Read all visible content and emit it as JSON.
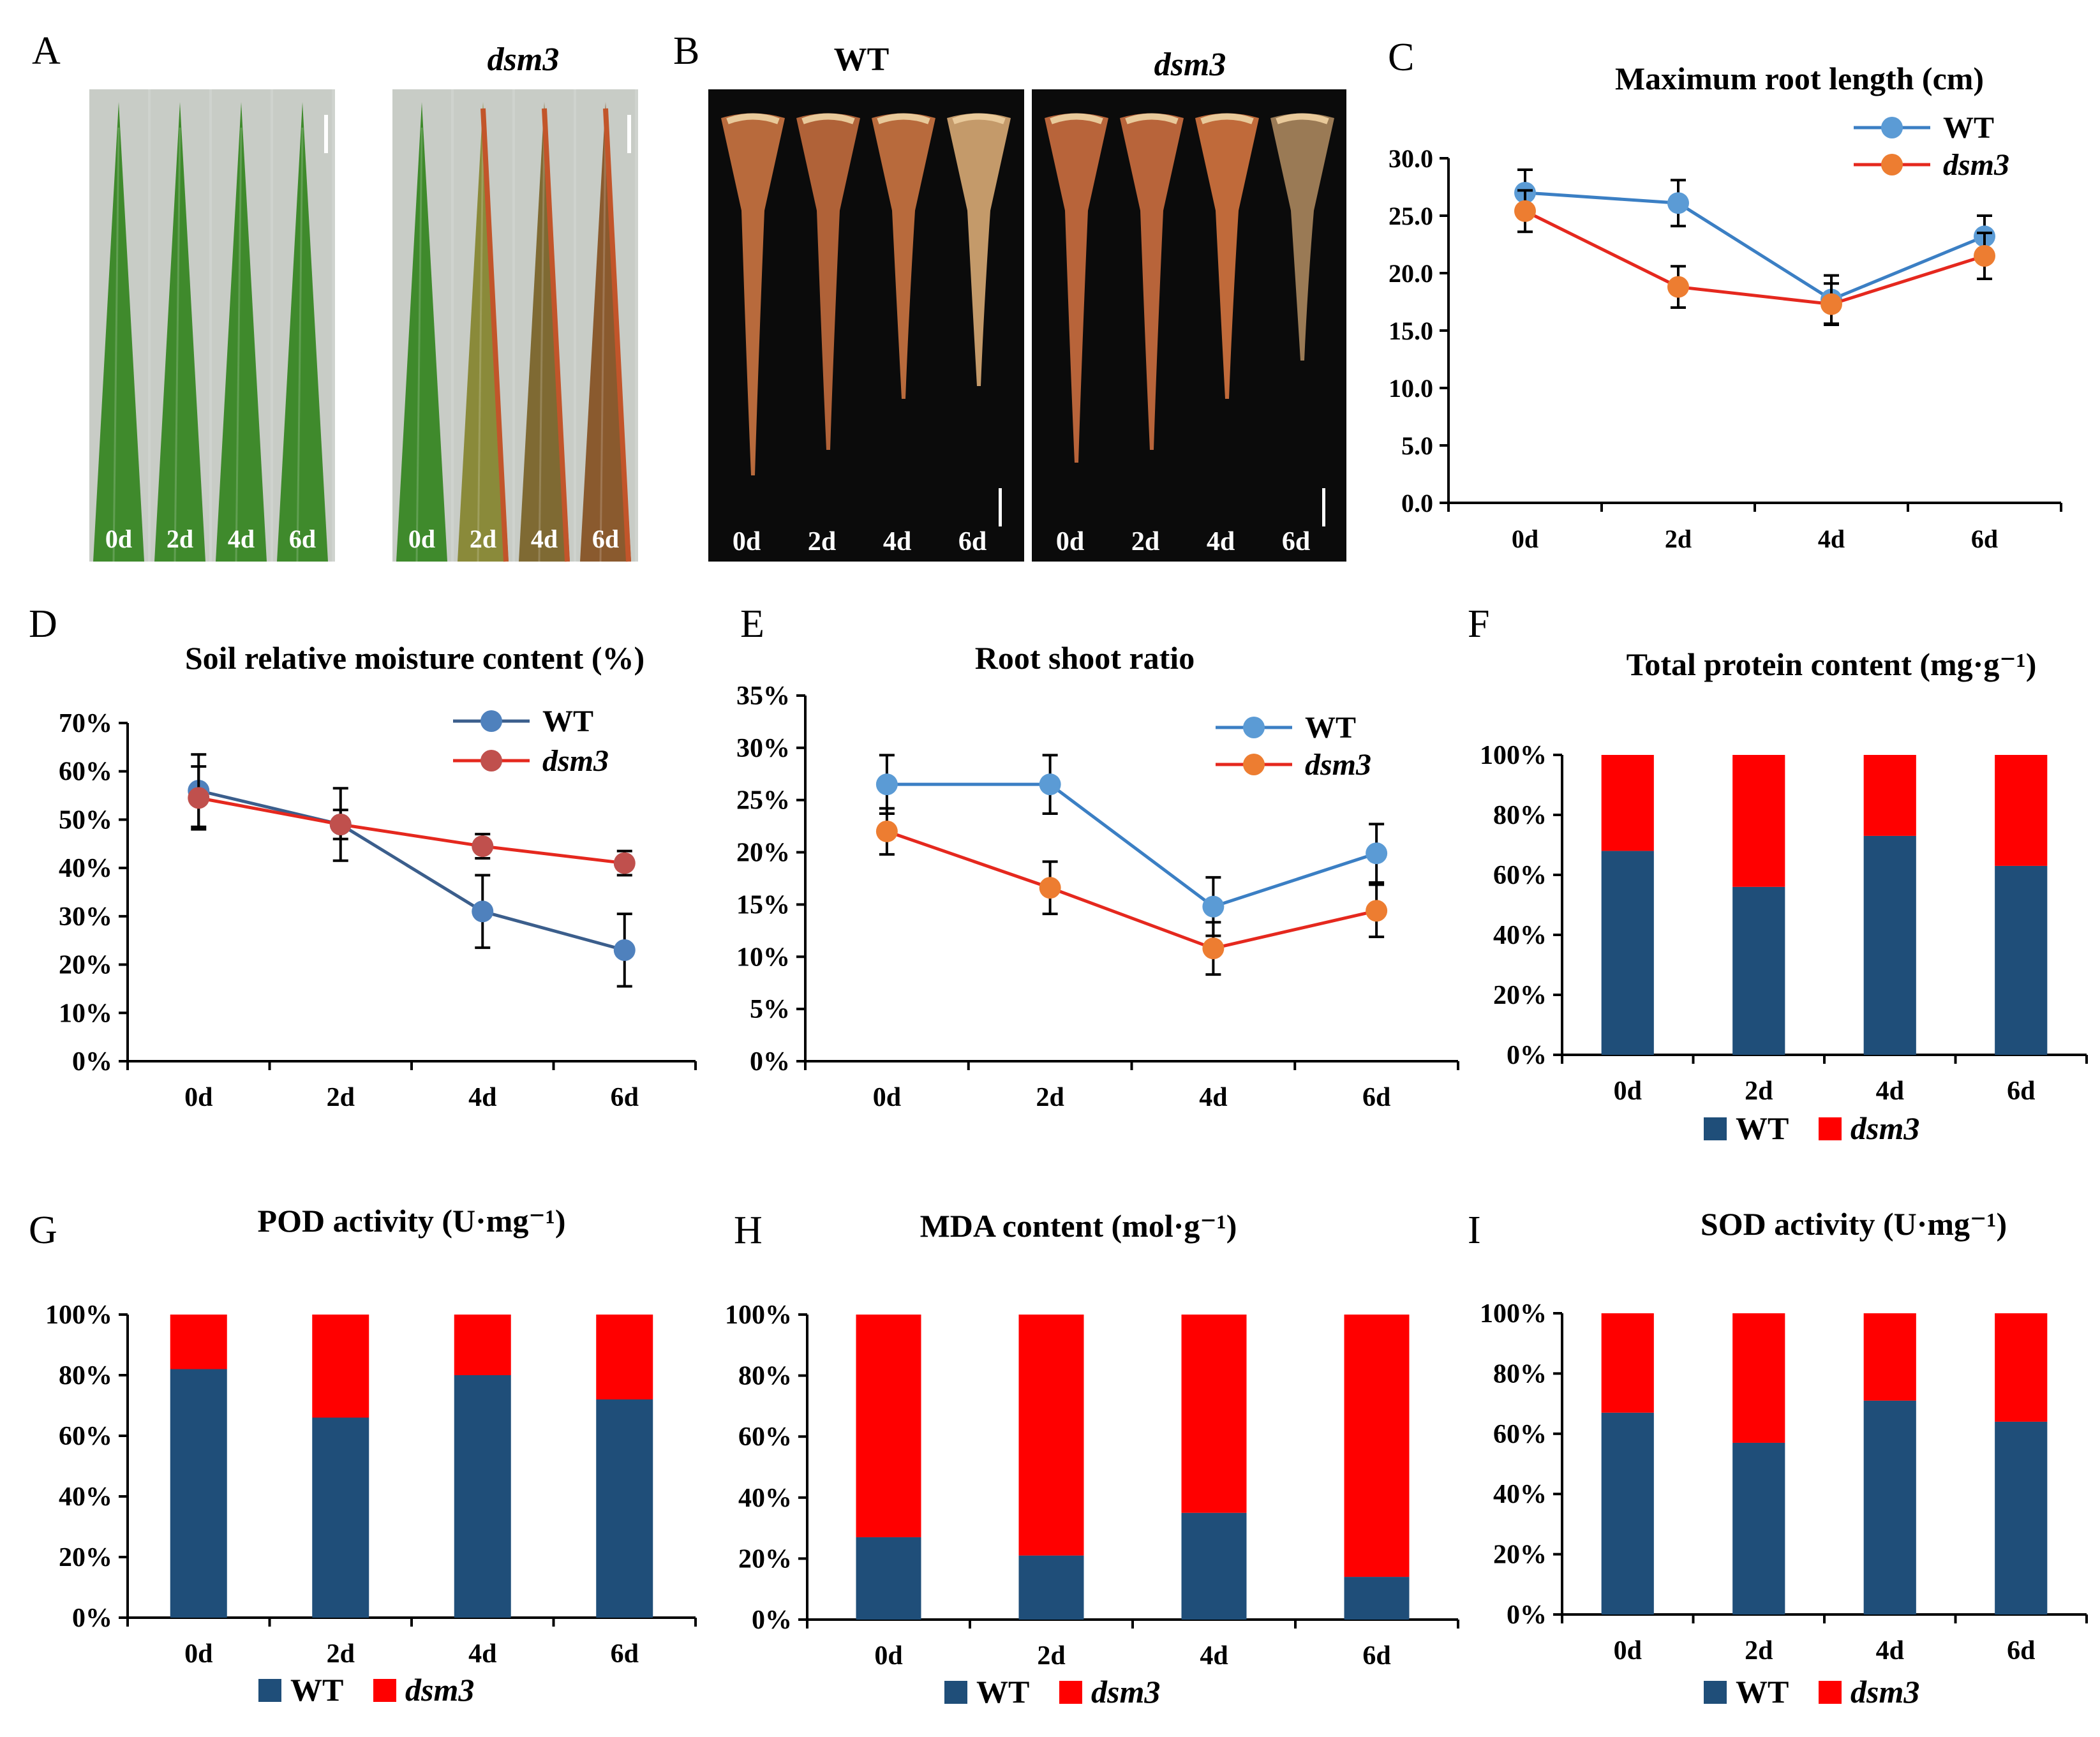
{
  "colors": {
    "wt_line": "#3B7FC4",
    "wt_marker": "#5B9BD5",
    "dsm3_line": "#E5281E",
    "dsm3_marker_orange": "#ED7D31",
    "dsm3_marker_red": "#C0504D",
    "wt_bar": "#1F4E79",
    "dsm3_bar": "#FF0000",
    "leaf_green": "#3f8a2c",
    "root_brown": "#b5653a"
  },
  "panels": {
    "A": {
      "letter": "A",
      "header": "dsm3",
      "wt_days": [
        "0d",
        "2d",
        "4d",
        "6d"
      ],
      "dsm3_days": [
        "0d",
        "2d",
        "4d",
        "6d"
      ]
    },
    "B": {
      "letter": "B",
      "wt_header": "WT",
      "dsm3_header": "dsm3",
      "wt_days": [
        "0d",
        "2d",
        "4d",
        "6d"
      ],
      "dsm3_days": [
        "0d",
        "2d",
        "4d",
        "6d"
      ]
    }
  },
  "chart_data": [
    {
      "id": "C",
      "letter": "C",
      "type": "line",
      "title": "Maximum root length (cm)",
      "categories": [
        "0d",
        "2d",
        "4d",
        "6d"
      ],
      "ylim": [
        0,
        30
      ],
      "yticks": [
        0,
        5,
        10,
        15,
        20,
        25,
        30
      ],
      "ytick_labels": [
        "0.0",
        "5.0",
        "10.0",
        "15.0",
        "20.0",
        "25.0",
        "30.0"
      ],
      "legend": "top-right",
      "series": [
        {
          "name": "WT",
          "values": [
            27.0,
            26.1,
            17.7,
            23.2
          ],
          "errors": [
            2.0,
            2.0,
            2.1,
            1.8
          ],
          "line": "#3B7FC4",
          "marker": "#5B9BD5"
        },
        {
          "name": "dsm3",
          "values": [
            25.4,
            18.8,
            17.3,
            21.5
          ],
          "errors": [
            1.8,
            1.8,
            1.8,
            2.0
          ],
          "line": "#E5281E",
          "marker": "#ED7D31"
        }
      ]
    },
    {
      "id": "D",
      "letter": "D",
      "type": "line",
      "title": "Soil relative moisture content (%)",
      "categories": [
        "0d",
        "2d",
        "4d",
        "6d"
      ],
      "ylim": [
        0,
        70
      ],
      "yticks": [
        0,
        10,
        20,
        30,
        40,
        50,
        60,
        70
      ],
      "ytick_labels": [
        "0%",
        "10%",
        "20%",
        "30%",
        "40%",
        "50%",
        "60%",
        "70%"
      ],
      "legend": "top-right",
      "series": [
        {
          "name": "WT",
          "values": [
            56,
            49,
            31,
            23
          ],
          "errors": [
            7.5,
            7.5,
            7.5,
            7.5
          ],
          "line": "#3B5E8C",
          "marker": "#4F81BD"
        },
        {
          "name": "dsm3",
          "values": [
            54.5,
            49,
            44.5,
            41
          ],
          "errors": [
            6.5,
            3.0,
            2.5,
            2.5
          ],
          "line": "#E5281E",
          "marker": "#C0504D"
        }
      ]
    },
    {
      "id": "E",
      "letter": "E",
      "type": "line",
      "title": "Root shoot ratio",
      "categories": [
        "0d",
        "2d",
        "4d",
        "6d"
      ],
      "ylim": [
        0,
        35
      ],
      "yticks": [
        0,
        5,
        10,
        15,
        20,
        25,
        30,
        35
      ],
      "ytick_labels": [
        "0%",
        "5%",
        "10%",
        "15%",
        "20%",
        "25%",
        "30%",
        "35%"
      ],
      "legend": "top-right",
      "series": [
        {
          "name": "WT",
          "values": [
            26.5,
            26.5,
            14.8,
            19.9
          ],
          "errors": [
            2.8,
            2.8,
            2.8,
            2.8
          ],
          "line": "#3B7FC4",
          "marker": "#5B9BD5"
        },
        {
          "name": "dsm3",
          "values": [
            22.0,
            16.6,
            10.8,
            14.4
          ],
          "errors": [
            2.2,
            2.5,
            2.5,
            2.5
          ],
          "line": "#E5281E",
          "marker": "#ED7D31"
        }
      ]
    },
    {
      "id": "F",
      "letter": "F",
      "type": "bar",
      "stacked": true,
      "title": "Total protein content (mg·g⁻¹)",
      "categories": [
        "0d",
        "2d",
        "4d",
        "6d"
      ],
      "ylim": [
        0,
        100
      ],
      "yticks": [
        0,
        20,
        40,
        60,
        80,
        100
      ],
      "ytick_labels": [
        "0%",
        "20%",
        "40%",
        "60%",
        "80%",
        "100%"
      ],
      "legend": "bottom",
      "series": [
        {
          "name": "WT",
          "values": [
            68,
            56,
            73,
            63
          ],
          "color": "#1F4E79"
        },
        {
          "name": "dsm3",
          "values": [
            32,
            44,
            27,
            37
          ],
          "color": "#FF0000"
        }
      ]
    },
    {
      "id": "G",
      "letter": "G",
      "type": "bar",
      "stacked": true,
      "title": "POD activity (U·mg⁻¹)",
      "categories": [
        "0d",
        "2d",
        "4d",
        "6d"
      ],
      "ylim": [
        0,
        100
      ],
      "yticks": [
        0,
        20,
        40,
        60,
        80,
        100
      ],
      "ytick_labels": [
        "0%",
        "20%",
        "40%",
        "60%",
        "80%",
        "100%"
      ],
      "legend": "bottom",
      "series": [
        {
          "name": "WT",
          "values": [
            82,
            66,
            80,
            72
          ],
          "color": "#1F4E79"
        },
        {
          "name": "dsm3",
          "values": [
            18,
            34,
            20,
            28
          ],
          "color": "#FF0000"
        }
      ]
    },
    {
      "id": "H",
      "letter": "H",
      "type": "bar",
      "stacked": true,
      "title": "MDA content (mol·g⁻¹)",
      "categories": [
        "0d",
        "2d",
        "4d",
        "6d"
      ],
      "ylim": [
        0,
        100
      ],
      "yticks": [
        0,
        20,
        40,
        60,
        80,
        100
      ],
      "ytick_labels": [
        "0%",
        "20%",
        "40%",
        "60%",
        "80%",
        "100%"
      ],
      "legend": "bottom",
      "series": [
        {
          "name": "WT",
          "values": [
            27,
            21,
            35,
            14
          ],
          "color": "#1F4E79"
        },
        {
          "name": "dsm3",
          "values": [
            73,
            79,
            65,
            86
          ],
          "color": "#FF0000"
        }
      ]
    },
    {
      "id": "I",
      "letter": "I",
      "type": "bar",
      "stacked": true,
      "title": "SOD activity (U·mg⁻¹)",
      "categories": [
        "0d",
        "2d",
        "4d",
        "6d"
      ],
      "ylim": [
        0,
        100
      ],
      "yticks": [
        0,
        20,
        40,
        60,
        80,
        100
      ],
      "ytick_labels": [
        "0%",
        "20%",
        "40%",
        "60%",
        "80%",
        "100%"
      ],
      "legend": "bottom",
      "series": [
        {
          "name": "WT",
          "values": [
            67,
            57,
            71,
            64
          ],
          "color": "#1F4E79"
        },
        {
          "name": "dsm3",
          "values": [
            33,
            43,
            29,
            36
          ],
          "color": "#FF0000"
        }
      ]
    }
  ]
}
